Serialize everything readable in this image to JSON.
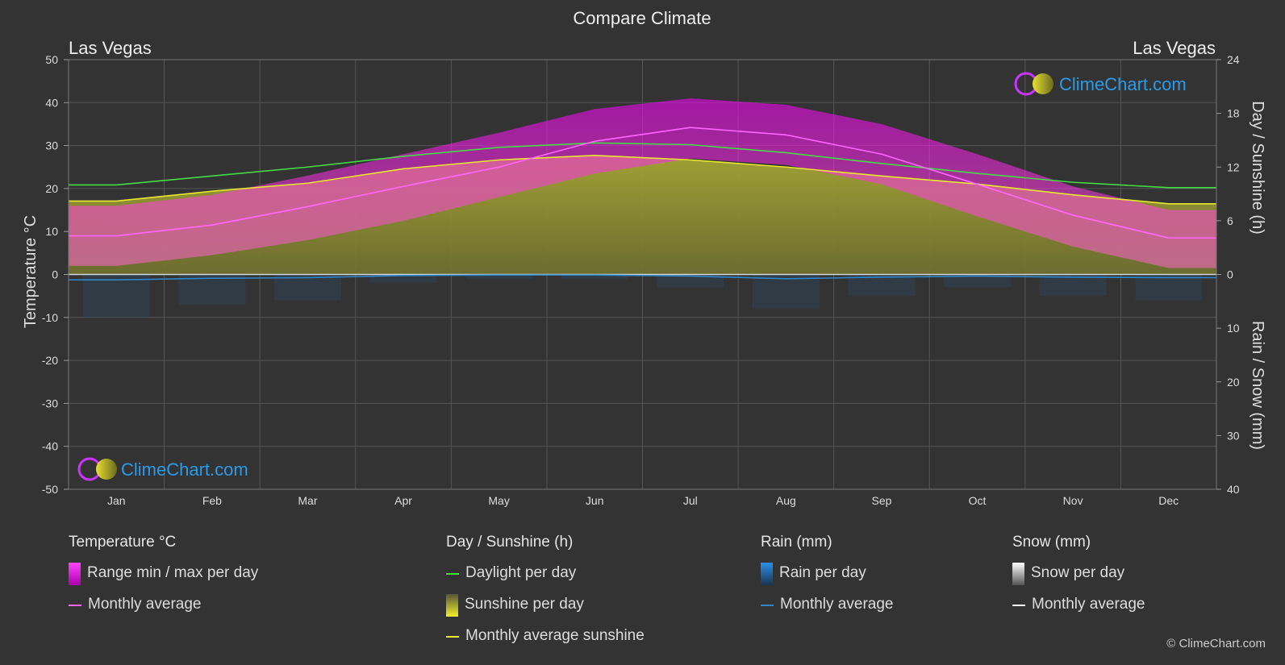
{
  "chart_data": {
    "type": "area",
    "title": "Compare Climate",
    "location_left": "Las Vegas",
    "location_right": "Las Vegas",
    "y_left_label": "Temperature °C",
    "y_right_top_label": "Day / Sunshine (h)",
    "y_right_bottom_label": "Rain / Snow (mm)",
    "y_left_range": [
      -50,
      50
    ],
    "y_left_ticks": [
      50,
      40,
      30,
      20,
      10,
      0,
      -10,
      -20,
      -30,
      -40,
      -50
    ],
    "y_right_top_ticks": [
      24,
      18,
      12,
      6,
      0
    ],
    "y_right_bottom_ticks": [
      10,
      20,
      30,
      40
    ],
    "grid": true,
    "months": [
      "Jan",
      "Feb",
      "Mar",
      "Apr",
      "May",
      "Jun",
      "Jul",
      "Aug",
      "Sep",
      "Oct",
      "Nov",
      "Dec"
    ],
    "series": [
      {
        "name": "Monthly average",
        "group": "temperature",
        "color": "#ff66ff",
        "values": [
          9.0,
          11.5,
          15.8,
          20.5,
          25.0,
          31.0,
          34.2,
          32.5,
          28.0,
          21.0,
          13.8,
          8.5
        ]
      },
      {
        "name": "Range min / max per day",
        "group": "temperature",
        "color": "#ee00ee",
        "min_values": [
          2.0,
          4.5,
          8.0,
          12.5,
          18.0,
          23.5,
          27.0,
          25.5,
          21.0,
          13.5,
          6.5,
          1.5
        ],
        "max_values": [
          16.0,
          18.5,
          23.0,
          28.0,
          33.0,
          38.5,
          41.0,
          39.5,
          35.0,
          28.0,
          20.5,
          15.0
        ]
      },
      {
        "name": "Daylight per day",
        "group": "day_sunshine",
        "color": "#44dd44",
        "values": [
          10.0,
          11.0,
          12.0,
          13.2,
          14.2,
          14.7,
          14.5,
          13.6,
          12.4,
          11.3,
          10.3,
          9.7
        ]
      },
      {
        "name": "Monthly average sunshine",
        "group": "day_sunshine",
        "color": "#e8e830",
        "values": [
          8.2,
          9.3,
          10.2,
          11.8,
          12.8,
          13.3,
          12.8,
          12.0,
          11.0,
          10.1,
          8.9,
          7.9
        ]
      },
      {
        "name": "Sunshine per day",
        "group": "day_sunshine",
        "color": "#b0b035",
        "values": [
          8.2,
          9.3,
          10.2,
          11.8,
          12.8,
          13.3,
          12.8,
          12.0,
          11.0,
          10.1,
          8.9,
          7.9
        ]
      },
      {
        "name": "Monthly average",
        "group": "rain",
        "color": "#2e86c8",
        "values": [
          1.0,
          0.7,
          0.6,
          0.2,
          0.1,
          0.1,
          0.3,
          0.8,
          0.5,
          0.3,
          0.5,
          0.6
        ]
      },
      {
        "name": "Monthly average",
        "group": "snow",
        "color": "#ffffff",
        "values": [
          0,
          0,
          0,
          0,
          0,
          0,
          0,
          0,
          0,
          0,
          0,
          0
        ]
      }
    ]
  },
  "legend": {
    "temperature": {
      "heading": "Temperature °C",
      "range": "Range min / max per day",
      "avg": "Monthly average"
    },
    "sunshine": {
      "heading": "Day / Sunshine (h)",
      "daylight": "Daylight per day",
      "sunshine": "Sunshine per day",
      "avg": "Monthly average sunshine"
    },
    "rain": {
      "heading": "Rain (mm)",
      "per_day": "Rain per day",
      "avg": "Monthly average"
    },
    "snow": {
      "heading": "Snow (mm)",
      "per_day": "Snow per day",
      "avg": "Monthly average"
    }
  },
  "brand": {
    "logo_text": "ClimeChart.com",
    "copyright": "© ClimeChart.com"
  }
}
